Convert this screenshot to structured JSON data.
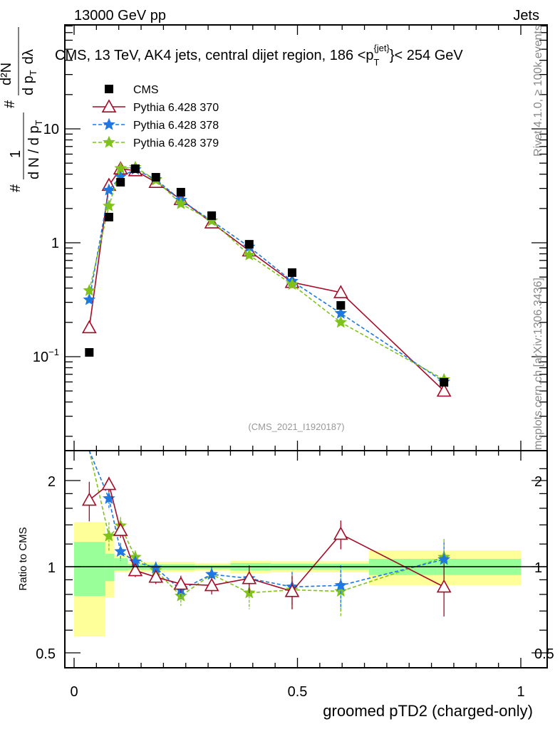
{
  "header": {
    "left": "13000 GeV pp",
    "right": "Jets"
  },
  "side_text": {
    "rivet": "Rivet 4.1.0, ≥ 100k events",
    "mcplots": "mcplots.cern.ch [arXiv:1306.3436]"
  },
  "chart_data": [
    {
      "type": "line",
      "title": "CMS, 13 TeV, AK4 jets, central dijet region, 186 <p_T^{jet}< 254 GeV",
      "title_parts": {
        "main": "CMS, 13 TeV, AK4 jets, central dijet region, 186 <p",
        "sub": "T",
        "sup": "{jet}",
        "end": "}< 254 GeV"
      },
      "ylabel": "1/(dN/dp_T) d²N/(dp_T dλ)",
      "ylabel_parts": {
        "one": "1",
        "dn": "d N / d p",
        "t": "T",
        "d2n": "d²N",
        "dpt": "d p",
        "dl": "dλ",
        "hash": "#"
      },
      "yscale": "log",
      "ylim": [
        0.015,
        82
      ],
      "xlim": [
        -0.02,
        1.06
      ],
      "y_tick_labels": [
        {
          "v": 0.1,
          "label": "10",
          "sup": "−1"
        },
        {
          "v": 1,
          "label": "1",
          "sup": ""
        },
        {
          "v": 10,
          "label": "10",
          "sup": ""
        }
      ],
      "annotation": "(CMS_2021_I1920187)",
      "legend_position": "top-left",
      "x": [
        0.034,
        0.078,
        0.104,
        0.137,
        0.183,
        0.239,
        0.308,
        0.392,
        0.488,
        0.597,
        0.828
      ],
      "series": [
        {
          "name": "CMS",
          "color": "#000000",
          "marker": "square",
          "values": [
            0.109,
            1.68,
            3.4,
            4.47,
            3.76,
            2.78,
            1.73,
            0.97,
            0.547,
            0.282,
            0.0596
          ]
        },
        {
          "name": "Pythia 6.428 370",
          "color": "#a50b27",
          "marker": "triangle",
          "dash": false,
          "values": [
            0.18,
            3.2,
            4.47,
            4.3,
            3.4,
            2.4,
            1.5,
            0.85,
            0.45,
            0.366,
            0.05
          ]
        },
        {
          "name": "Pythia 6.428 378",
          "color": "#1f78e0",
          "marker": "star",
          "dash": true,
          "values": [
            0.316,
            2.9,
            3.8,
            4.4,
            3.6,
            2.37,
            1.56,
            0.92,
            0.46,
            0.24,
            0.06
          ]
        },
        {
          "name": "Pythia 6.428 379",
          "color": "#7ec21a",
          "marker": "star",
          "dash": true,
          "values": [
            0.38,
            2.1,
            4.5,
            4.6,
            3.55,
            2.2,
            1.56,
            0.78,
            0.43,
            0.2,
            0.063
          ]
        }
      ]
    },
    {
      "type": "line",
      "ylabel": "Ratio to CMS",
      "xlabel": "groomed pTD2 (charged-only)",
      "yscale": "log",
      "ylim": [
        0.45,
        2.35
      ],
      "y_tick_labels": [
        "0.5",
        "1",
        "2"
      ],
      "x_tick_labels": [
        "0",
        "0.5",
        "1"
      ],
      "band_edges": [
        0,
        0.07,
        0.09,
        0.12,
        0.27,
        0.35,
        0.44,
        0.66,
        1.0
      ],
      "band_total": [
        [
          0.57,
          1.43
        ],
        [
          0.78,
          1.29
        ],
        [
          0.955,
          1.1
        ],
        [
          0.96,
          1.04
        ],
        [
          0.965,
          1.03
        ],
        [
          0.95,
          1.05
        ],
        [
          0.955,
          1.045
        ],
        [
          0.86,
          1.14
        ]
      ],
      "band_stat": [
        [
          0.79,
          1.22
        ],
        [
          0.89,
          1.11
        ],
        [
          0.97,
          1.07
        ],
        [
          0.975,
          1.02
        ],
        [
          0.98,
          1.015
        ],
        [
          0.97,
          1.03
        ],
        [
          0.975,
          1.025
        ],
        [
          0.935,
          1.065
        ]
      ],
      "band_colors": {
        "total": "#ffff99",
        "stat": "#99ff99"
      },
      "series": [
        {
          "name": "Pythia 6.428 370",
          "values": [
            1.71,
            1.94,
            1.34,
            0.97,
            0.92,
            0.87,
            0.86,
            0.91,
            0.82,
            1.3,
            0.85
          ],
          "err": [
            0.27,
            0.12,
            0.08,
            0.05,
            0.05,
            0.06,
            0.06,
            0.1,
            0.11,
            0.15,
            0.18
          ]
        },
        {
          "name": "Pythia 6.428 378",
          "values": [
            2.6,
            1.73,
            1.13,
            1.04,
            0.99,
            0.83,
            0.94,
            0.91,
            0.85,
            0.86,
            1.06
          ],
          "err": [
            0.3,
            0.15,
            0.08,
            0.05,
            0.05,
            0.06,
            0.06,
            0.1,
            0.11,
            0.15,
            0.16
          ]
        },
        {
          "name": "Pythia 6.428 379",
          "values": [
            2.7,
            1.28,
            1.39,
            1.08,
            0.97,
            0.79,
            0.94,
            0.81,
            0.83,
            0.82,
            1.08
          ],
          "err": [
            0.3,
            0.15,
            0.1,
            0.06,
            0.05,
            0.06,
            0.06,
            0.1,
            0.12,
            0.15,
            0.17
          ]
        }
      ]
    }
  ]
}
